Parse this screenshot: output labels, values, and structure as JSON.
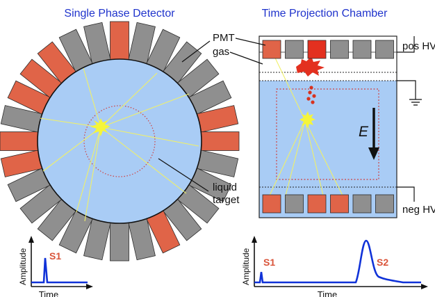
{
  "titles": {
    "left": "Single Phase Detector",
    "right": "Time Projection Chamber"
  },
  "labels": {
    "pmt": "PMT",
    "gas": "gas",
    "pos_hv": "pos HV",
    "neg_hv": "neg HV",
    "liquid_line1": "liquid",
    "liquid_line2": "target",
    "efield": "E"
  },
  "plots": {
    "left": {
      "ylabel": "Amplitude",
      "xlabel": "Time",
      "s1": "S1"
    },
    "right": {
      "ylabel": "Amplitude",
      "xlabel": "Time",
      "s1": "S1",
      "s2": "S2"
    }
  },
  "ring_pmts": [
    "orange",
    "gray",
    "gray",
    "gray",
    "gray",
    "gray",
    "orange",
    "orange",
    "gray",
    "gray",
    "gray",
    "gray",
    "orange",
    "gray",
    "gray",
    "gray",
    "gray",
    "gray",
    "gray",
    "gray",
    "orange",
    "orange",
    "gray",
    "orange",
    "orange",
    "orange",
    "gray",
    "gray"
  ],
  "tpc_top_pmts": [
    "orange",
    "gray",
    "red",
    "gray",
    "gray",
    "gray"
  ],
  "tpc_bottom_pmts": [
    "orange",
    "gray",
    "orange",
    "orange",
    "gray",
    "gray"
  ],
  "colors": {
    "title": "#1f33cc",
    "signal": "#d9543a",
    "trace": "#1032d8",
    "pmt_orange": "#e06448",
    "pmt_gray": "#8f8f8f",
    "pmt_red": "#e3301f",
    "liquid": "#a9ccf5",
    "flash": "#f5f53a",
    "track": "#f0f06a"
  }
}
